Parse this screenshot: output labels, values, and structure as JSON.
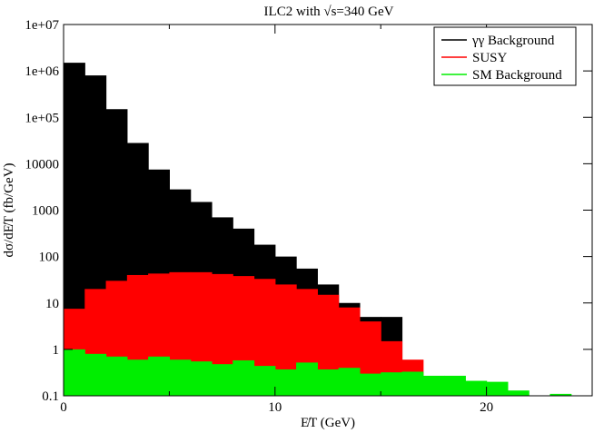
{
  "chart_data": {
    "type": "bar",
    "title": "ILC2 with √s=340 GeV",
    "xlabel": "E̸T (GeV)",
    "ylabel": "dσ/dE̸T   (fb/GeV)",
    "xlim": [
      0,
      25
    ],
    "ylim": [
      0.1,
      10000000
    ],
    "yscale": "log",
    "bin_width": 1,
    "grid": false,
    "legend_position": "top-right",
    "x_ticks": [
      {
        "value": 0,
        "label": "0"
      },
      {
        "value": 10,
        "label": "10"
      },
      {
        "value": 20,
        "label": "20"
      }
    ],
    "y_ticks": [
      {
        "value": 0.1,
        "label": "0.1"
      },
      {
        "value": 1,
        "label": "1"
      },
      {
        "value": 10,
        "label": "10"
      },
      {
        "value": 100,
        "label": "100"
      },
      {
        "value": 1000,
        "label": "1000"
      },
      {
        "value": 10000,
        "label": "10000"
      },
      {
        "value": 100000,
        "label": "1e+05"
      },
      {
        "value": 1000000,
        "label": "1e+06"
      },
      {
        "value": 10000000,
        "label": "1e+07"
      }
    ],
    "series": [
      {
        "name": "γγ Background",
        "color": "#000000",
        "bin_starts": [
          0,
          1,
          2,
          3,
          4,
          5,
          6,
          7,
          8,
          9,
          10,
          11,
          12,
          13,
          14,
          15
        ],
        "values": [
          1500000,
          800000,
          150000,
          28000,
          7500,
          2800,
          1500,
          700,
          400,
          180,
          100,
          55,
          25,
          10,
          5,
          5
        ]
      },
      {
        "name": "SUSY",
        "color": "#ff0000",
        "bin_starts": [
          0,
          1,
          2,
          3,
          4,
          5,
          6,
          7,
          8,
          9,
          10,
          11,
          12,
          13,
          14,
          15,
          16
        ],
        "values": [
          7.5,
          20,
          30,
          40,
          43,
          46,
          46,
          42,
          38,
          33,
          25,
          20,
          15,
          8,
          4,
          1.5,
          0.6
        ]
      },
      {
        "name": "SM Background",
        "color": "#00ee00",
        "bin_starts": [
          0,
          1,
          2,
          3,
          4,
          5,
          6,
          7,
          8,
          9,
          10,
          11,
          12,
          13,
          14,
          15,
          16,
          17,
          18,
          19,
          20,
          21,
          22,
          23
        ],
        "values": [
          1.0,
          0.8,
          0.7,
          0.6,
          0.7,
          0.6,
          0.55,
          0.48,
          0.58,
          0.44,
          0.37,
          0.52,
          0.37,
          0.4,
          0.3,
          0.32,
          0.33,
          0.27,
          0.27,
          0.21,
          0.2,
          0.13,
          0.1,
          0.11
        ]
      }
    ]
  }
}
